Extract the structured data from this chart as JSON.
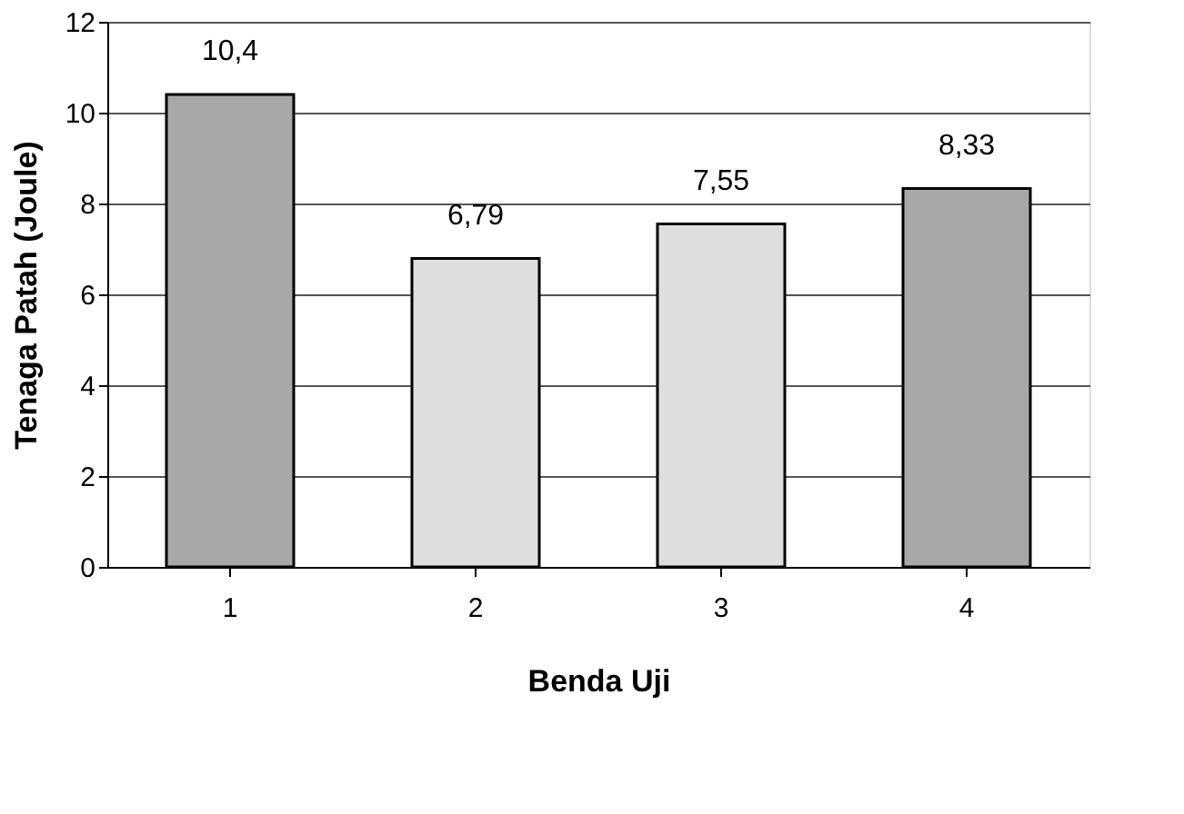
{
  "chart_data": {
    "type": "bar",
    "xlabel": "Benda Uji",
    "ylabel": "Tenaga Patah (Joule)",
    "categories": [
      "1",
      "2",
      "3",
      "4"
    ],
    "values": [
      10.4,
      6.79,
      7.55,
      8.33
    ],
    "value_labels": [
      "10,4",
      "6,79",
      "7,55",
      "8,33"
    ],
    "colors": [
      "#a8a8a8",
      "#dedede",
      "#dedede",
      "#a8a8a8"
    ],
    "ylim": [
      0,
      12
    ],
    "yticks": [
      0,
      2,
      4,
      6,
      8,
      10,
      12
    ],
    "grid": "y"
  }
}
